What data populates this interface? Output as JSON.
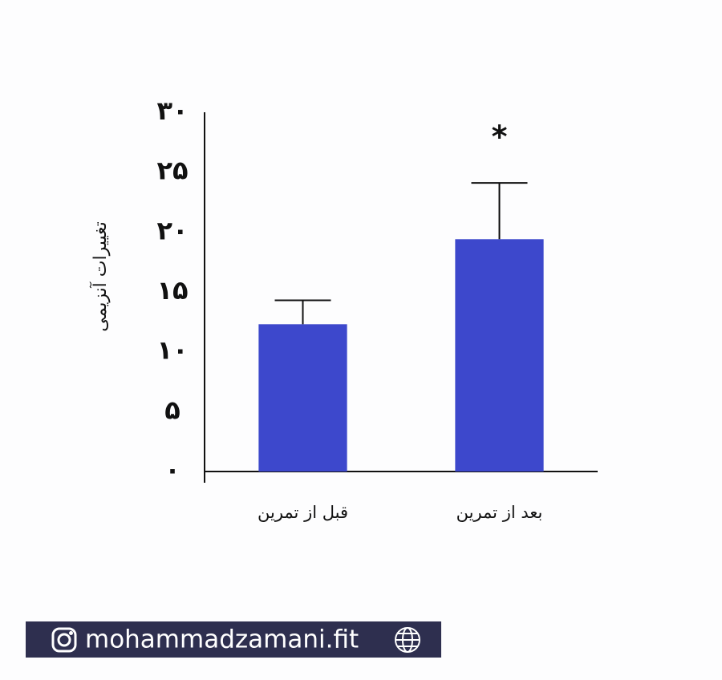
{
  "chart_data": {
    "type": "bar",
    "annotation": "*",
    "y_label": "تغییرات آنزیمی",
    "categories": [
      "قبل از تمرین",
      "بعد از تمرین"
    ],
    "values": [
      12.3,
      19.4
    ],
    "errors": [
      2,
      4.7
    ],
    "color": "#3d48cc",
    "ylim": [
      0,
      30
    ],
    "yticks": [
      {
        "value": 0,
        "label": "۰"
      },
      {
        "value": 5,
        "label": "۵"
      },
      {
        "value": 10,
        "label": "۱۰"
      },
      {
        "value": 15,
        "label": "۱۵"
      },
      {
        "value": 20,
        "label": "۲۰"
      },
      {
        "value": 25,
        "label": "۲۵"
      },
      {
        "value": 30,
        "label": "۳۰"
      }
    ],
    "grid": false
  },
  "footer": "mohammadzamani.fit"
}
